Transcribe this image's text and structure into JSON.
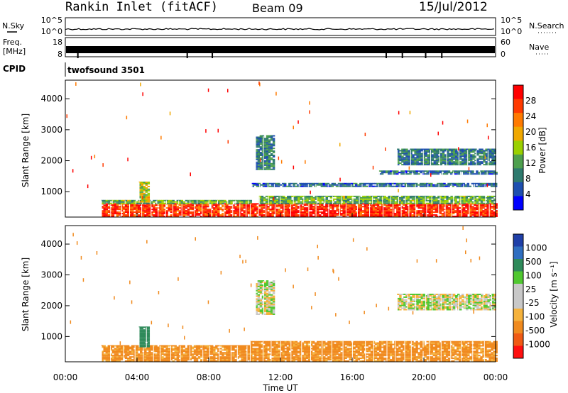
{
  "header": {
    "station": "Rankin Inlet (fitACF)",
    "beam": "Beam 09",
    "date": "15/Jul/2012"
  },
  "top_panels": {
    "nsky_label": "N.Sky",
    "nsky_ticks": [
      "10^5",
      "10^0"
    ],
    "nsearch_label": "N.Search",
    "freq_label_line1": "Freq.",
    "freq_label_line2": "[MHz]",
    "freq_ticks": [
      "18",
      "8"
    ],
    "nave_label": "Nave",
    "nave_ticks": [
      "60",
      "0"
    ],
    "cpid_label": "CPID",
    "cpid_value": "twofsound 3501"
  },
  "power_panel": {
    "ylabel": "Slant Range [km]",
    "colorbar_label": "Power [dB]",
    "colorbar_ticks": [
      "28",
      "24",
      "20",
      "16",
      "12",
      "8",
      "4"
    ],
    "colorbar_colors": [
      "#ff0000",
      "#ff3a00",
      "#ff7a00",
      "#f0a800",
      "#9ad000",
      "#4ea04e",
      "#2e7a6e",
      "#1e4fb0",
      "#0000ff"
    ]
  },
  "velocity_panel": {
    "ylabel": "Slant Range [km]",
    "colorbar_label": "Velocity [m s⁻¹]",
    "colorbar_ticks": [
      "1000",
      "500",
      "100",
      "25",
      "-25",
      "-100",
      "-500",
      "-1000"
    ],
    "colorbar_colors": [
      "#1f3fa8",
      "#2f6ec0",
      "#2e8a5a",
      "#50c830",
      "#c8c8c8",
      "#c8c8c8",
      "#f5b23c",
      "#f08a1e",
      "#f05a14",
      "#ff1010"
    ]
  },
  "x_axis": {
    "label": "Time UT",
    "ticks": [
      "00:00",
      "04:00",
      "08:00",
      "12:00",
      "16:00",
      "20:00",
      "00:00"
    ]
  },
  "chart_data": [
    {
      "type": "heatmap",
      "title": "Power",
      "xlabel": "Time UT",
      "ylabel": "Slant Range [km]",
      "xlim": [
        0,
        24
      ],
      "ylim": [
        180,
        4600
      ],
      "y_ticks": [
        1000,
        2000,
        3000,
        4000
      ],
      "colorbar": {
        "label": "Power [dB]",
        "ticks": [
          4,
          8,
          12,
          16,
          20,
          24,
          28
        ]
      },
      "regions": [
        {
          "t0": 2.0,
          "t1": 10.3,
          "r0": 180,
          "r1": 600,
          "level": 27
        },
        {
          "t0": 2.0,
          "t1": 10.3,
          "r0": 600,
          "r1": 720,
          "level": 12
        },
        {
          "t0": 4.1,
          "t1": 4.7,
          "r0": 650,
          "r1": 1300,
          "level": 16
        },
        {
          "t0": 10.3,
          "t1": 24.0,
          "r0": 180,
          "r1": 600,
          "level": 28
        },
        {
          "t0": 10.8,
          "t1": 24.0,
          "r0": 600,
          "r1": 850,
          "level": 12
        },
        {
          "t0": 10.6,
          "t1": 11.6,
          "r0": 1700,
          "r1": 2800,
          "level": 8
        },
        {
          "t0": 10.4,
          "t1": 24.0,
          "r0": 1150,
          "r1": 1250,
          "level": 6
        },
        {
          "t0": 17.5,
          "t1": 24.0,
          "r0": 1550,
          "r1": 1650,
          "level": 6
        },
        {
          "t0": 18.5,
          "t1": 24.0,
          "r0": 1850,
          "r1": 2350,
          "level": 7
        }
      ]
    },
    {
      "type": "heatmap",
      "title": "Velocity",
      "xlabel": "Time UT",
      "ylabel": "Slant Range [km]",
      "xlim": [
        0,
        24
      ],
      "ylim": [
        180,
        4600
      ],
      "y_ticks": [
        1000,
        2000,
        3000,
        4000
      ],
      "colorbar": {
        "label": "Velocity [m s⁻¹]",
        "ticks": [
          -1000,
          -500,
          -100,
          -25,
          25,
          100,
          500,
          1000
        ]
      },
      "regions": [
        {
          "t0": 2.0,
          "t1": 10.3,
          "r0": 180,
          "r1": 700,
          "level": -150
        },
        {
          "t0": 4.1,
          "t1": 4.7,
          "r0": 650,
          "r1": 1300,
          "level": 200
        },
        {
          "t0": 10.3,
          "t1": 24.0,
          "r0": 180,
          "r1": 850,
          "level": -150
        },
        {
          "t0": 10.6,
          "t1": 11.6,
          "r0": 1700,
          "r1": 2800,
          "level": 0
        },
        {
          "t0": 18.5,
          "t1": 24.0,
          "r0": 1850,
          "r1": 2350,
          "level": 0
        }
      ]
    }
  ]
}
